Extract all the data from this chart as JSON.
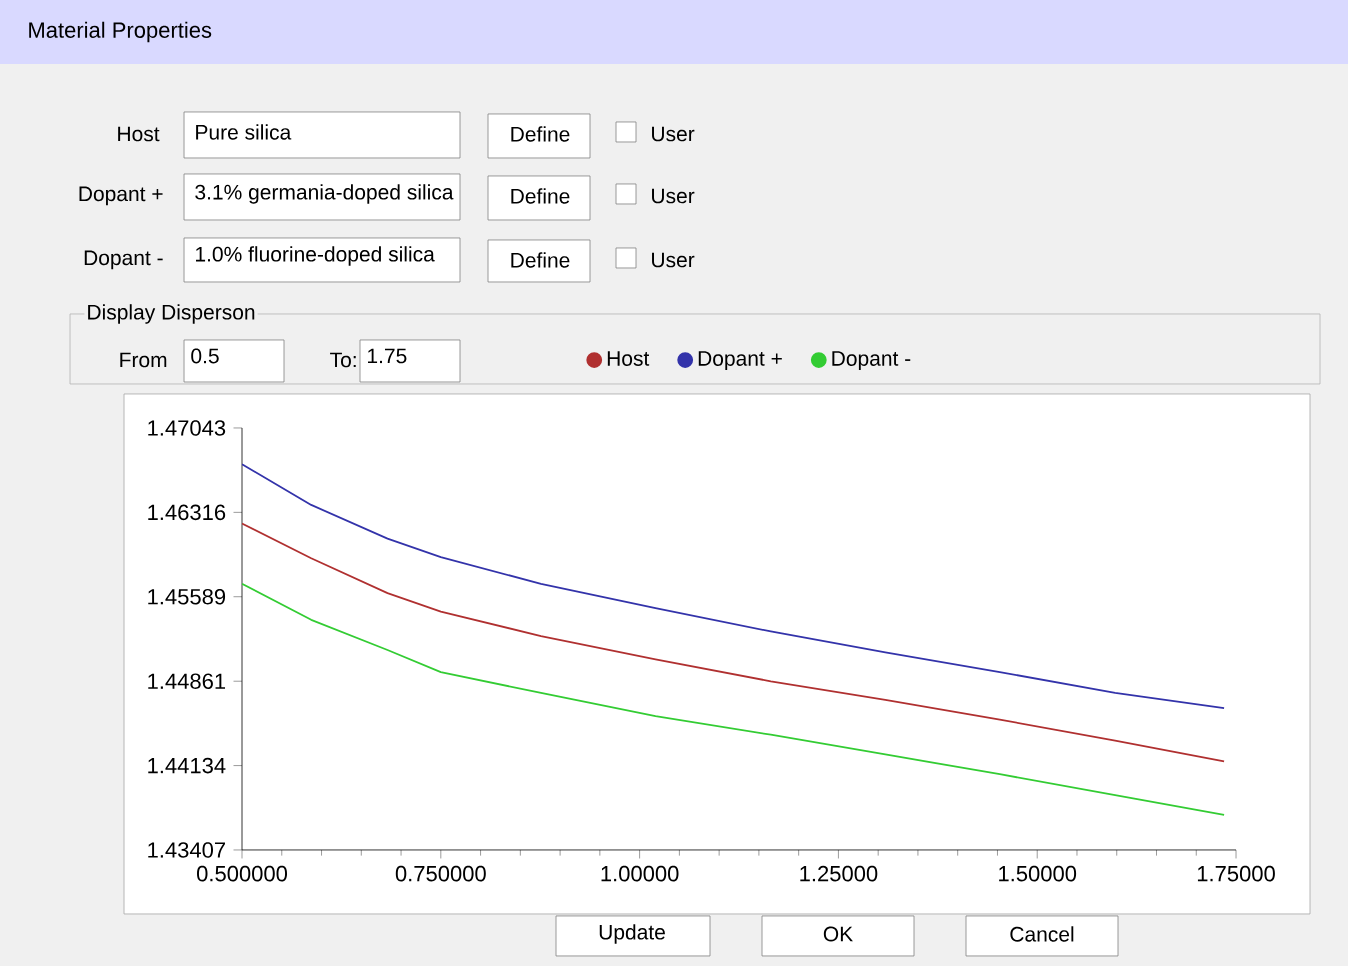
{
  "chart_data": {
    "type": "line",
    "title": "Material Properties",
    "x": [
      0.5,
      0.587,
      0.683,
      0.75,
      0.876,
      1.02,
      1.165,
      1.309,
      1.453,
      1.598,
      1.735
    ],
    "series": [
      {
        "name": "Host",
        "color": "#b03030",
        "values": [
          1.4622,
          1.4592,
          1.4562,
          1.4546,
          1.4525,
          1.4505,
          1.4486,
          1.447,
          1.4453,
          1.4435,
          1.4417
        ]
      },
      {
        "name": "Dopant +",
        "color": "#3333aa",
        "values": [
          1.4673,
          1.4638,
          1.4609,
          1.4593,
          1.457,
          1.4549,
          1.4529,
          1.4511,
          1.4494,
          1.4476,
          1.4463
        ]
      },
      {
        "name": "Dopant -",
        "color": "#33cc33",
        "values": [
          1.457,
          1.4539,
          1.4513,
          1.4494,
          1.4476,
          1.4456,
          1.444,
          1.4423,
          1.4406,
          1.4388,
          1.4371
        ]
      }
    ],
    "xlim": [
      0.5,
      1.75
    ],
    "ylim": [
      1.43407,
      1.47043
    ],
    "xticks": [
      {
        "value": 0.5,
        "label": "0.500000"
      },
      {
        "value": 0.75,
        "label": "0.750000"
      },
      {
        "value": 1.0,
        "label": "1.00000"
      },
      {
        "value": 1.25,
        "label": "1.25000"
      },
      {
        "value": 1.5,
        "label": "1.50000"
      },
      {
        "value": 1.75,
        "label": "1.75000"
      }
    ],
    "yticks": [
      1.43407,
      1.44134,
      1.44861,
      1.45589,
      1.46316,
      1.47043
    ],
    "legend": "top",
    "annotations": [
      "Host",
      "Pure silica",
      "Define",
      "User",
      "Dopant +",
      "3.1% germania-doped silica",
      "Define",
      "User",
      "Dopant -",
      "1.0% fluorine-doped silica",
      "Define",
      "User",
      "Display Disperson",
      "From",
      "0.5",
      "To:",
      "1.75",
      "Update",
      "OK",
      "Cancel"
    ]
  }
}
